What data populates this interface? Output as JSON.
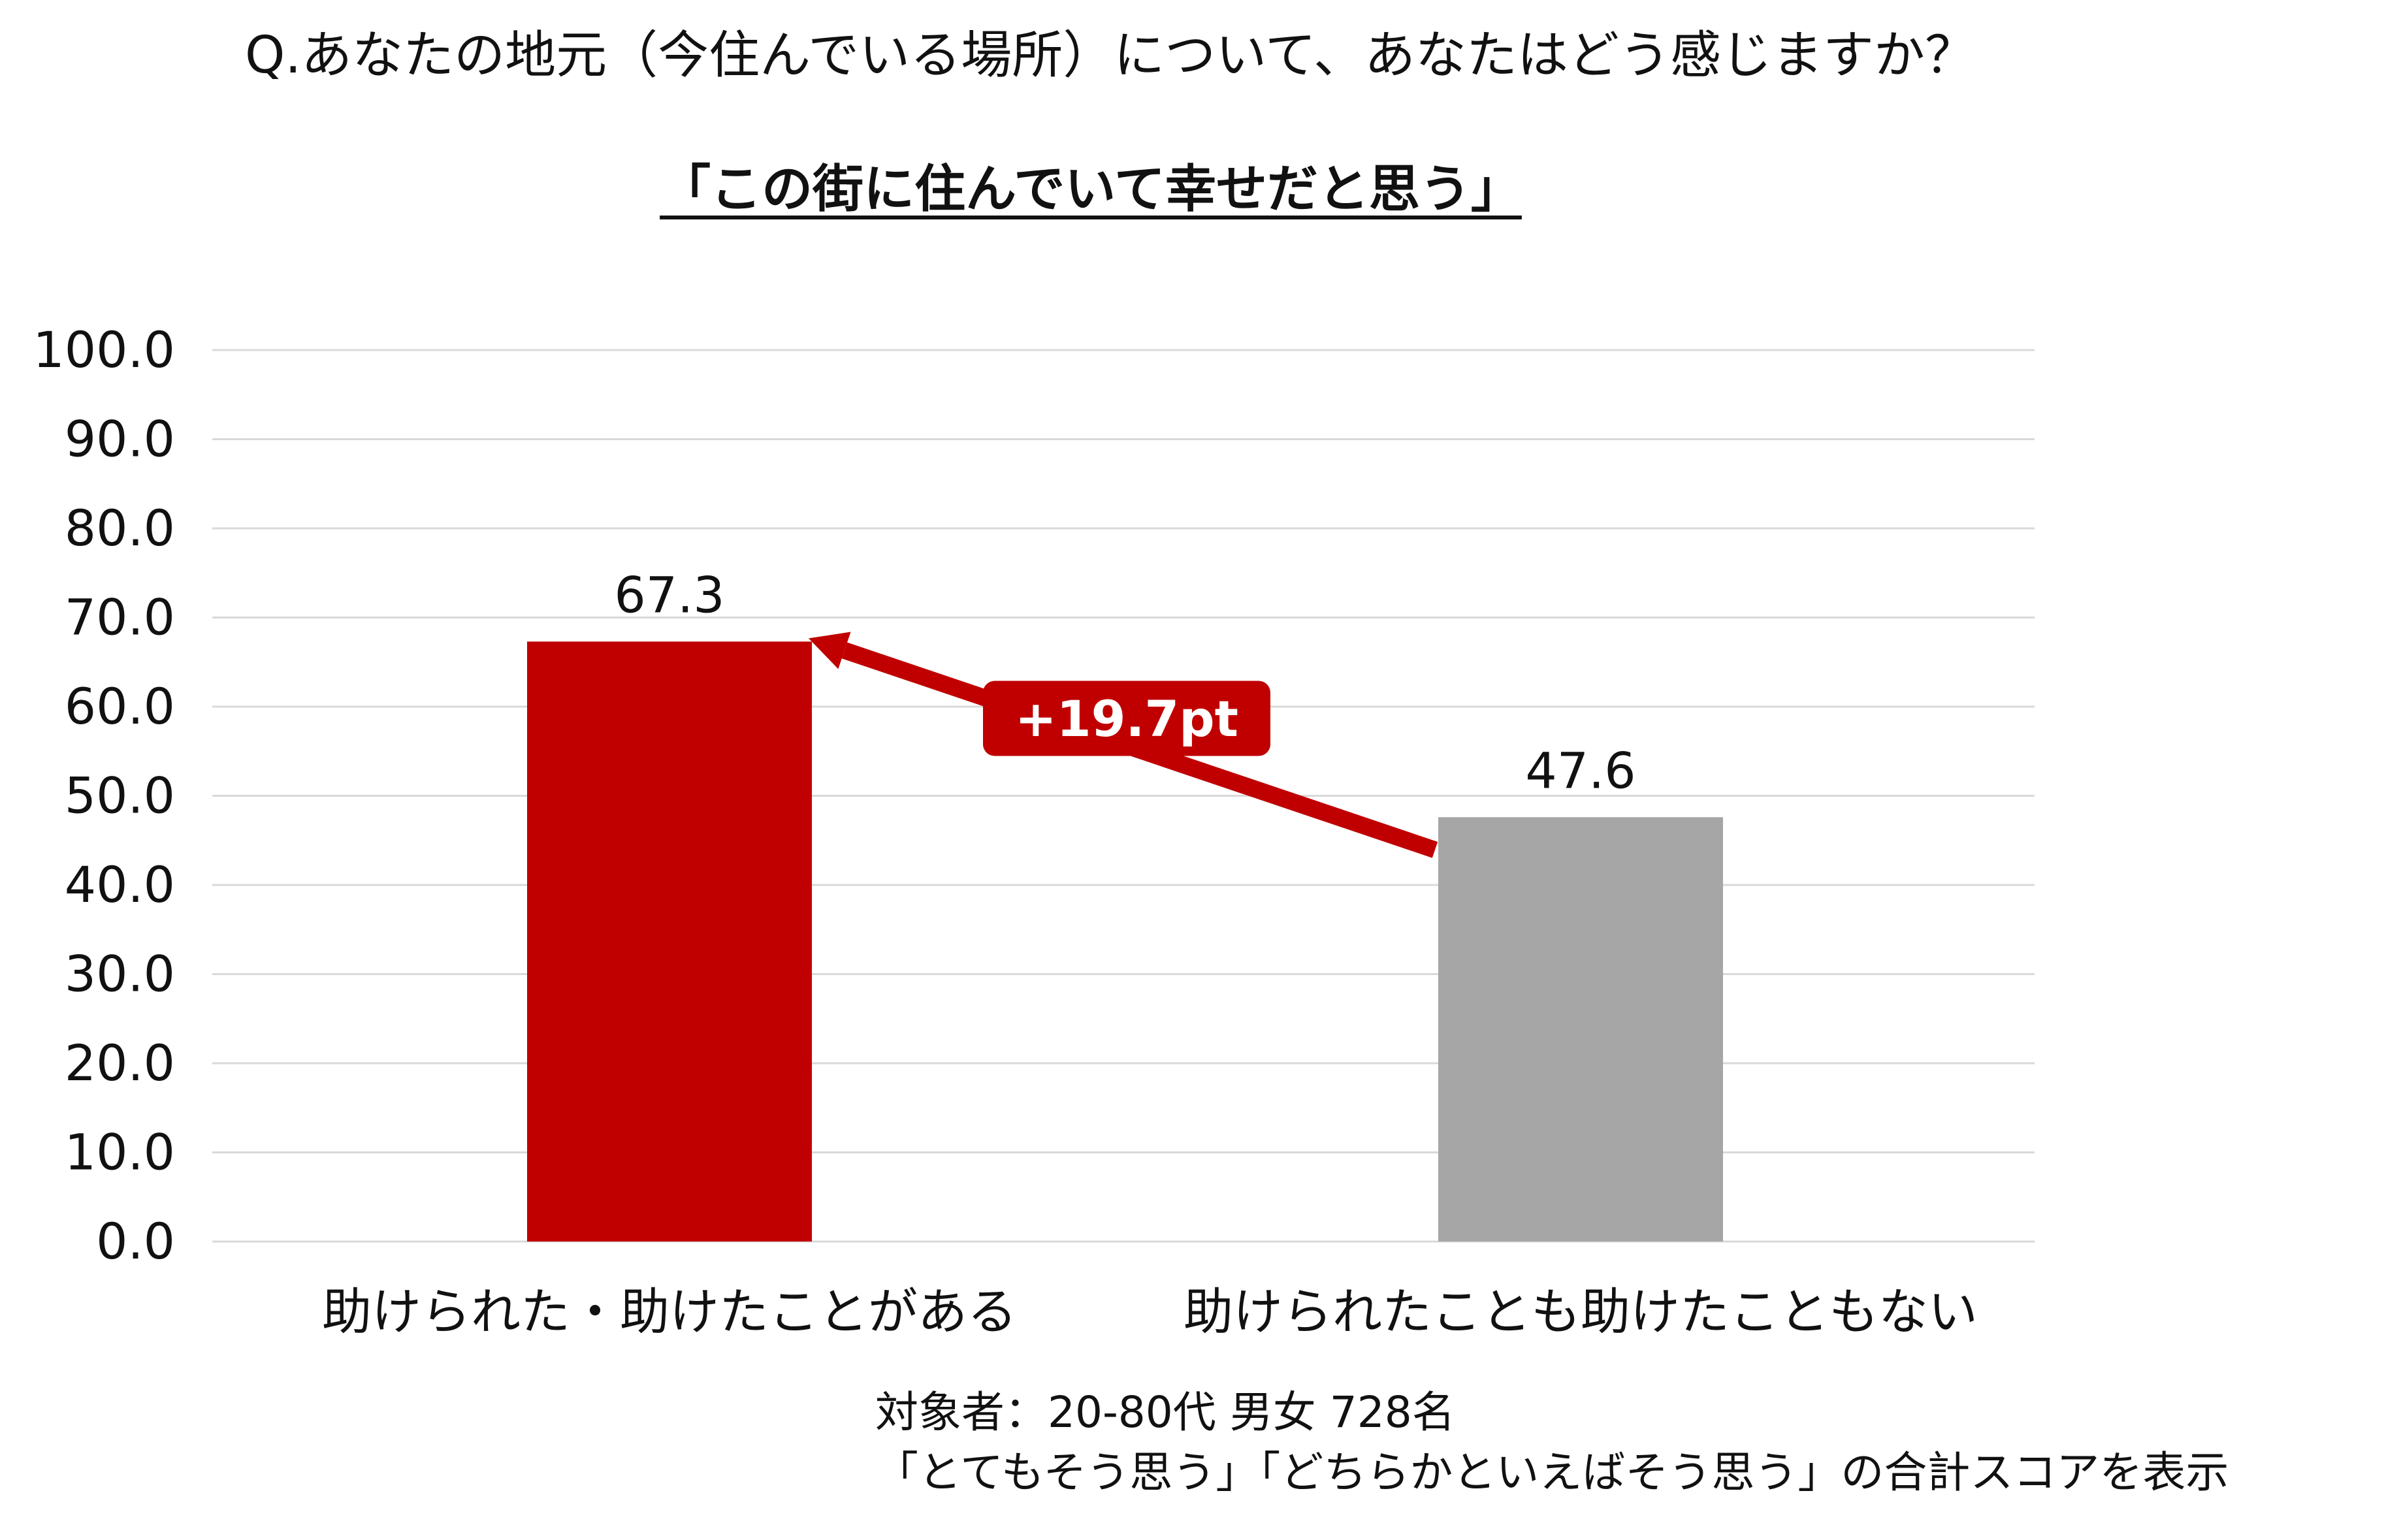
{
  "question": "Q.あなたの地元（今住んでいる場所）について、あなたはどう感じますか？",
  "subtitle": "「この街に住んでいて幸せだと思う」",
  "notes": {
    "line1": "対象者：20-80代 男女 728名",
    "line2": "「とてもそう思う」「どちらかといえばそう思う」の合計スコアを表示"
  },
  "chart_data": {
    "type": "bar",
    "categories": [
      "助けられた・助けたことがある",
      "助けられたことも助けたこともない"
    ],
    "values": [
      67.3,
      47.6
    ],
    "value_labels": [
      "67.3",
      "47.6"
    ],
    "bar_colors": [
      "#c00000",
      "#a6a6a6"
    ],
    "ylim": [
      0,
      100
    ],
    "yticks": [
      "0.0",
      "10.0",
      "20.0",
      "30.0",
      "40.0",
      "50.0",
      "60.0",
      "70.0",
      "80.0",
      "90.0",
      "100.0"
    ],
    "grid": true,
    "annotation": {
      "text": "+19.7pt",
      "color": "#c00000"
    }
  }
}
